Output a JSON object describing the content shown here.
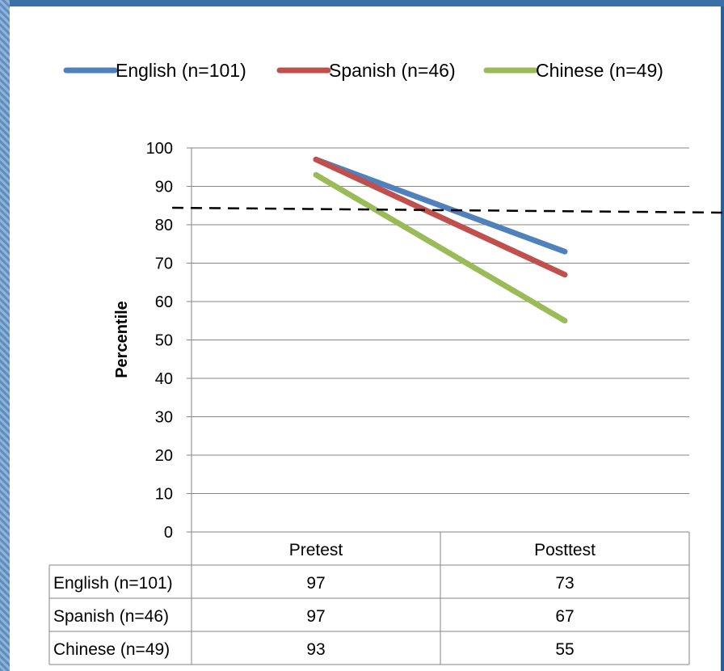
{
  "chart_data": {
    "type": "line",
    "categories": [
      "Pretest",
      "Posttest"
    ],
    "ylabel": "Percentile",
    "ylim": [
      0,
      100
    ],
    "yticks": [
      0,
      10,
      20,
      30,
      40,
      50,
      60,
      70,
      80,
      90,
      100
    ],
    "grid": true,
    "legend_position": "top",
    "reference_line": {
      "y": 84,
      "style": "dashed",
      "color": "#000000"
    },
    "series": [
      {
        "name": "English (n=101)",
        "values": [
          97,
          73
        ],
        "color": "#4f81bd"
      },
      {
        "name": "Spanish (n=46)",
        "values": [
          97,
          67
        ],
        "color": "#c0504d"
      },
      {
        "name": "Chinese (n=49)",
        "values": [
          93,
          55
        ],
        "color": "#9bbb59"
      }
    ],
    "data_table": true
  }
}
